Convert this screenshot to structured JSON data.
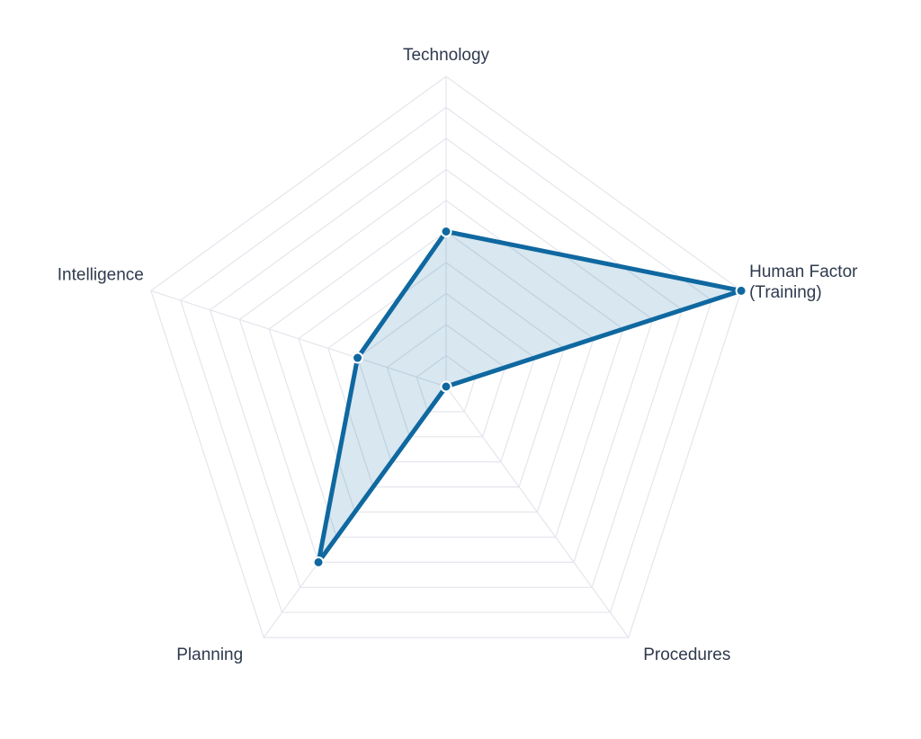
{
  "chart_data": {
    "type": "radar",
    "categories": [
      "Technology",
      "Human Factor (Training)",
      "Procedures",
      "Planning",
      "Intelligence"
    ],
    "series": [
      {
        "color": "#0f68a0",
        "values": [
          5,
          10,
          0,
          7,
          3
        ]
      }
    ],
    "rlim": [
      0,
      10
    ],
    "rticks": [
      1,
      2,
      3,
      4,
      5,
      6,
      7,
      8,
      9,
      10
    ],
    "grid": true
  }
}
